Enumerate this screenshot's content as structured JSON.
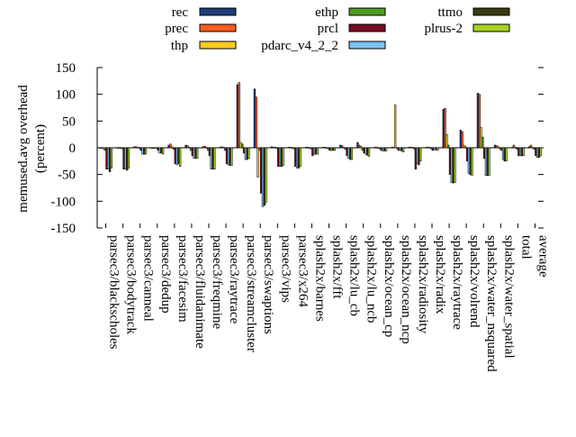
{
  "chart_data": {
    "type": "bar",
    "title": "",
    "xlabel": "",
    "ylabel": "memused.avg overhead\n(percent)",
    "ylim": [
      -150,
      150
    ],
    "yticks": [
      -150,
      -100,
      -50,
      0,
      50,
      100,
      150
    ],
    "grid": false,
    "legend_position": "top",
    "categories": [
      "parsec3/blackscholes",
      "parsec3/bodytrack",
      "parsec3/canneal",
      "parsec3/dedup",
      "parsec3/facesim",
      "parsec3/fluidanimate",
      "parsec3/freqmine",
      "parsec3/raytrace",
      "parsec3/streamcluster",
      "parsec3/swaptions",
      "parsec3/vips",
      "parsec3/x264",
      "splash2x/barnes",
      "splash2x/fft",
      "splash2x/lu_cb",
      "splash2x/lu_ncb",
      "splash2x/ocean_cp",
      "splash2x/ocean_ncp",
      "splash2x/radiosity",
      "splash2x/radix",
      "splash2x/raytrace",
      "splash2x/volrend",
      "splash2x/water_nsquared",
      "splash2x/water_spatial",
      "total",
      "average"
    ],
    "series": [
      {
        "name": "rec",
        "color": "#1f3d7a",
        "values": [
          -1,
          -1,
          2,
          -1,
          5,
          5,
          2,
          1,
          118,
          110,
          2,
          1,
          1,
          1,
          5,
          10,
          1,
          1,
          1,
          1,
          72,
          33,
          102,
          5,
          1,
          2
        ]
      },
      {
        "name": "prec",
        "color": "#ff5a1f",
        "values": [
          -1,
          -1,
          2,
          -1,
          7,
          4,
          3,
          2,
          122,
          95,
          1,
          1,
          1,
          1,
          4,
          5,
          1,
          1,
          1,
          1,
          74,
          30,
          100,
          4,
          5,
          5
        ]
      },
      {
        "name": "thp",
        "color": "#ffcc1f",
        "values": [
          -2,
          -1,
          1,
          -1,
          2,
          1,
          1,
          1,
          10,
          -55,
          1,
          0,
          0,
          0,
          1,
          3,
          0,
          80,
          1,
          1,
          25,
          5,
          38,
          2,
          1,
          1
        ]
      },
      {
        "name": "ethp",
        "color": "#4e9a23",
        "values": [
          -5,
          -2,
          0,
          -1,
          -3,
          -5,
          -5,
          -5,
          7,
          -5,
          -1,
          -2,
          -2,
          -2,
          -3,
          -5,
          -2,
          -1,
          -2,
          -2,
          5,
          2,
          20,
          -2,
          -3,
          -3
        ]
      },
      {
        "name": "prcl",
        "color": "#7a0a25",
        "values": [
          -40,
          -40,
          -5,
          -5,
          -30,
          -15,
          -15,
          -30,
          -10,
          -85,
          -35,
          -35,
          -15,
          -5,
          -15,
          -10,
          -5,
          -5,
          -40,
          -5,
          -50,
          -25,
          -20,
          -5,
          -15,
          -15
        ]
      },
      {
        "name": "pdarc_v4_2_2",
        "color": "#7cc4f2",
        "values": [
          -40,
          -40,
          -12,
          -10,
          -32,
          -20,
          -40,
          -32,
          -22,
          -110,
          -35,
          -38,
          -12,
          -5,
          -20,
          -12,
          -6,
          -5,
          -30,
          -4,
          -65,
          -48,
          -52,
          -22,
          -15,
          -18
        ]
      },
      {
        "name": "ttmo",
        "color": "#3a3a10",
        "values": [
          -45,
          -42,
          -12,
          -10,
          -30,
          -20,
          -40,
          -33,
          -22,
          -108,
          -35,
          -38,
          -12,
          -5,
          -22,
          -14,
          -6,
          -6,
          -32,
          -4,
          -66,
          -50,
          -52,
          -25,
          -15,
          -18
        ]
      },
      {
        "name": "plrus-2",
        "color": "#a8d41f",
        "values": [
          -38,
          -38,
          -12,
          -12,
          -35,
          -20,
          -40,
          -33,
          -20,
          -103,
          -33,
          -35,
          -12,
          -5,
          -22,
          -16,
          -6,
          -8,
          -25,
          -5,
          -65,
          -52,
          -52,
          -25,
          -15,
          -15
        ]
      }
    ]
  }
}
